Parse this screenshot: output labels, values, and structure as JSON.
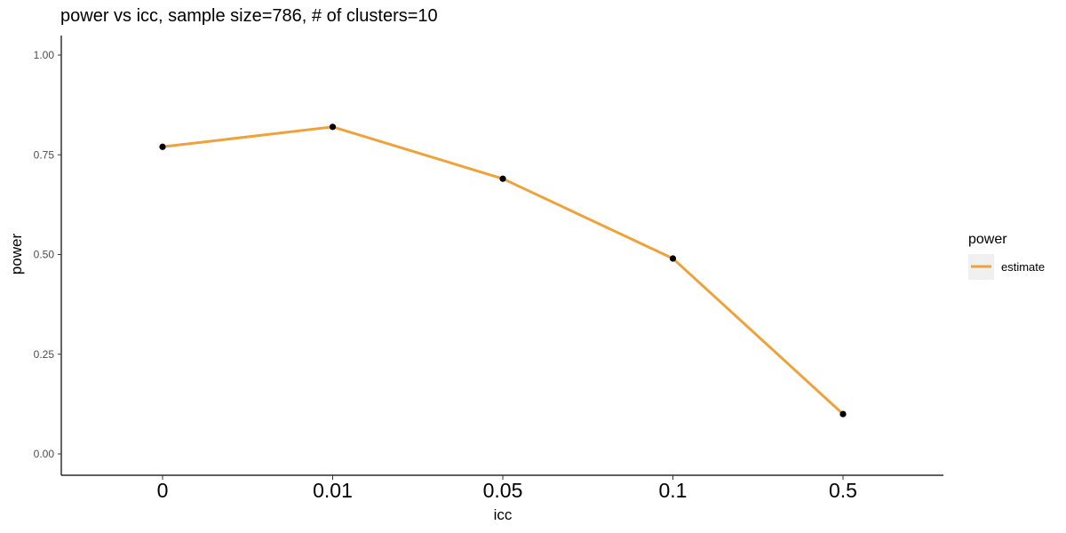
{
  "chart_data": {
    "type": "line",
    "title": "power vs icc, sample size=786, # of clusters=10",
    "xlabel": "icc",
    "ylabel": "power",
    "categories": [
      "0",
      "0.01",
      "0.05",
      "0.1",
      "0.5"
    ],
    "series": [
      {
        "name": "estimate",
        "values": [
          0.77,
          0.82,
          0.69,
          0.49,
          0.1
        ],
        "color": "#f0a23a"
      }
    ],
    "ylim": [
      0,
      1
    ],
    "yticks": [
      "0.00",
      "0.25",
      "0.50",
      "0.75",
      "1.00"
    ],
    "grid": false,
    "point_color": "#000000",
    "legend": {
      "title": "power",
      "position": "right",
      "key_bg": "#f0f0f0"
    }
  }
}
